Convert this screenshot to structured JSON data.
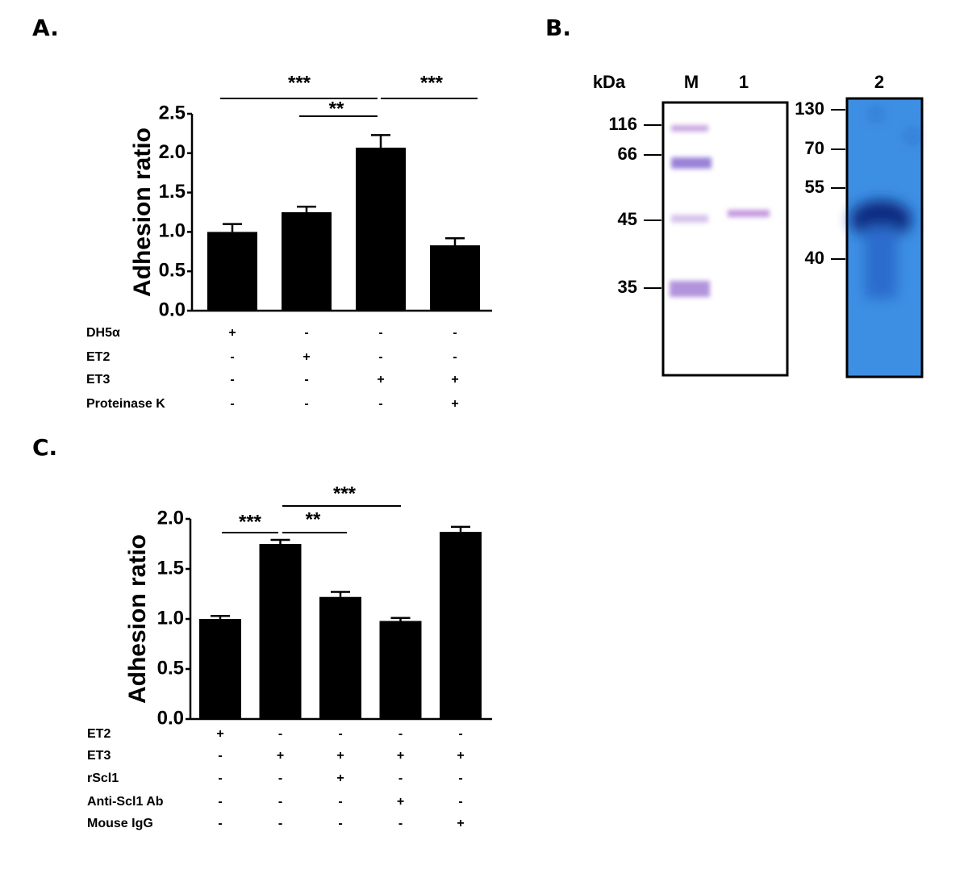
{
  "chart_data": [
    {
      "type": "bar",
      "panel": "A.",
      "y_label": "Adhesion ratio",
      "color": "#000000",
      "values": [
        1.0,
        1.25,
        2.07,
        0.83
      ],
      "errors": [
        0.1,
        0.07,
        0.16,
        0.09
      ],
      "ylim": [
        0,
        2.5
      ],
      "yticks": [
        {
          "value": 0,
          "label": "0.0"
        },
        0.5,
        {
          "value": 1,
          "label": "1.0"
        },
        1.5,
        {
          "value": 2,
          "label": "2.0"
        },
        2.5
      ],
      "significance": [
        {
          "text": "***",
          "between": [
            0,
            2
          ]
        },
        {
          "text": "**",
          "between": [
            1,
            2
          ]
        },
        {
          "text": "***",
          "between": [
            2,
            3
          ]
        }
      ],
      "conditions": [
        {
          "label": "DH5α",
          "signs": [
            "+",
            "-",
            "-",
            "-"
          ]
        },
        {
          "label": "ET2",
          "signs": [
            "-",
            "+",
            "-",
            "-"
          ]
        },
        {
          "label": "ET3",
          "signs": [
            "-",
            "-",
            "+",
            "+"
          ]
        },
        {
          "label": "Proteinase K",
          "signs": [
            "-",
            "-",
            "-",
            "+"
          ]
        }
      ]
    },
    {
      "type": "bar",
      "panel": "C.",
      "y_label": "Adhesion ratio",
      "color": "#000000",
      "values": [
        1.0,
        1.75,
        1.22,
        0.98,
        1.87
      ],
      "errors": [
        0.03,
        0.04,
        0.05,
        0.03,
        0.05
      ],
      "ylim": [
        0,
        2
      ],
      "yticks": [
        {
          "value": 0,
          "label": "0.0"
        },
        0.5,
        {
          "value": 1,
          "label": "1.0"
        },
        1.5,
        {
          "value": 2,
          "label": "2.0"
        }
      ],
      "significance": [
        {
          "text": "***",
          "between": [
            0,
            1
          ]
        },
        {
          "text": "**",
          "between": [
            1,
            2
          ]
        },
        {
          "text": "***",
          "between": [
            1,
            3
          ]
        }
      ],
      "conditions": [
        {
          "label": "ET2",
          "signs": [
            "+",
            "-",
            "-",
            "-",
            "-"
          ]
        },
        {
          "label": "ET3",
          "signs": [
            "-",
            "+",
            "+",
            "+",
            "+"
          ]
        },
        {
          "label": "rScl1",
          "signs": [
            "-",
            "-",
            "+",
            "-",
            "-"
          ]
        },
        {
          "label": "Anti-Scl1 Ab",
          "signs": [
            "-",
            "-",
            "-",
            "+",
            "-"
          ]
        },
        {
          "label": "Mouse IgG",
          "signs": [
            "-",
            "-",
            "-",
            "-",
            "+"
          ]
        }
      ]
    }
  ],
  "gel": {
    "panel": "B.",
    "unit": "kDa",
    "lanes": [
      "M",
      "1",
      "2"
    ],
    "markers_left": [
      116,
      66,
      45,
      35
    ],
    "markers_right": [
      130,
      70,
      55,
      40
    ]
  }
}
